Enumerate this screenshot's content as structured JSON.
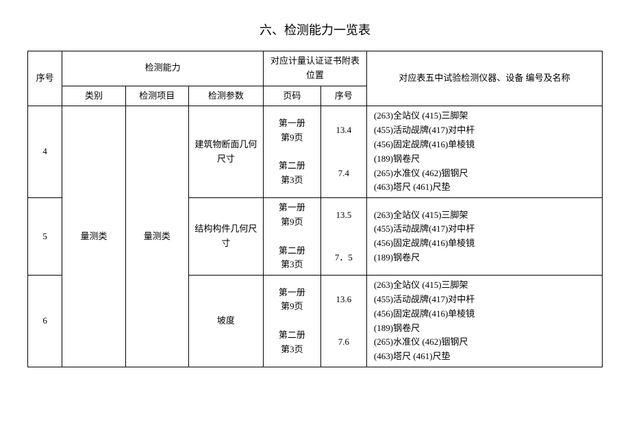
{
  "title": "六、检测能力一览表",
  "headers": {
    "seq": "序号",
    "capability": "检测能力",
    "cert": "对应计量认证证书附表位置",
    "equip": "对应表五中试验检测仪器、设备\n编号及名称",
    "category": "类别",
    "item": "检测项目",
    "param": "检测参数",
    "page": "页码",
    "index": "序号"
  },
  "merged": {
    "category": "量测类",
    "item": "量测类"
  },
  "rows": [
    {
      "seq": "4",
      "param": "建筑物断面几何尺寸",
      "page": "第一册\n第9页\n\n第二册\n第3页",
      "index": "13.4\n\n\n7.4",
      "equip": "(263)全站仪  (415)三脚架\n(455)活动觇牌(417)对中杆\n(456)固定觇牌(416)单棱镜\n(189)钢卷尺\n(265)水准仪  (462)铟钢尺\n(463)塔尺          (461)尺垫"
    },
    {
      "seq": "5",
      "param": "结构构件几何尺寸",
      "page": "第一册\n第9页\n\n第二册\n第3页",
      "index": "13.5\n\n\n7．5",
      "equip": "(263)全站仪                            (415)三脚架\n(455)活动觇牌(417)对中杆\n(456)固定觇牌(416)单棱镜\n(189)钢卷尺"
    },
    {
      "seq": "6",
      "param": "坡度",
      "page": "第一册\n第9页\n\n第二册\n第3页",
      "index": "13.6\n\n\n7.6",
      "equip": "(263)全站仪  (415)三脚架\n(455)活动觇牌(417)对中杆\n(456)固定觇牌(416)单棱镜\n(189)钢卷尺\n(265)水准仪  (462)铟钢尺\n(463)塔尺          (461)尺垫"
    }
  ]
}
